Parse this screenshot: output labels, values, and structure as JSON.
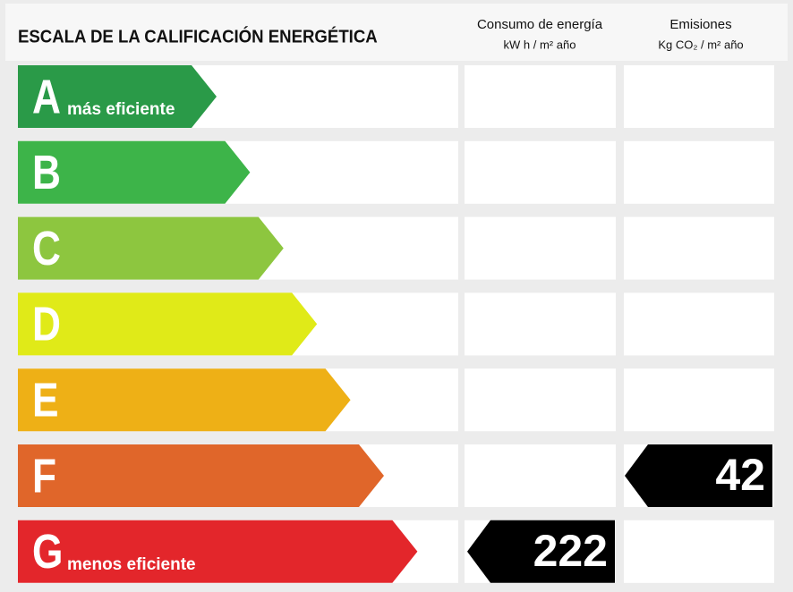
{
  "title": "ESCALA DE LA CALIFICACIÓN ENERGÉTICA",
  "columns": [
    {
      "title": "Consumo de energía",
      "unit": "kW h / m² año"
    },
    {
      "title": "Emisiones",
      "unit": "Kg CO₂ / m² año"
    }
  ],
  "ratings": [
    {
      "letter": "A",
      "label": "más eficiente",
      "color": "#2a9a48",
      "consumption": null,
      "emissions": null
    },
    {
      "letter": "B",
      "color": "#3db449",
      "consumption": null,
      "emissions": null
    },
    {
      "letter": "C",
      "color": "#8dc63f",
      "consumption": null,
      "emissions": null
    },
    {
      "letter": "D",
      "color": "#e0ea18",
      "consumption": null,
      "emissions": null
    },
    {
      "letter": "E",
      "color": "#eeb016",
      "consumption": null,
      "emissions": null
    },
    {
      "letter": "F",
      "color": "#e0662a",
      "consumption": null,
      "emissions": 42
    },
    {
      "letter": "G",
      "label": "menos eficiente",
      "color": "#e3262b",
      "consumption": 222,
      "emissions": null
    }
  ]
}
